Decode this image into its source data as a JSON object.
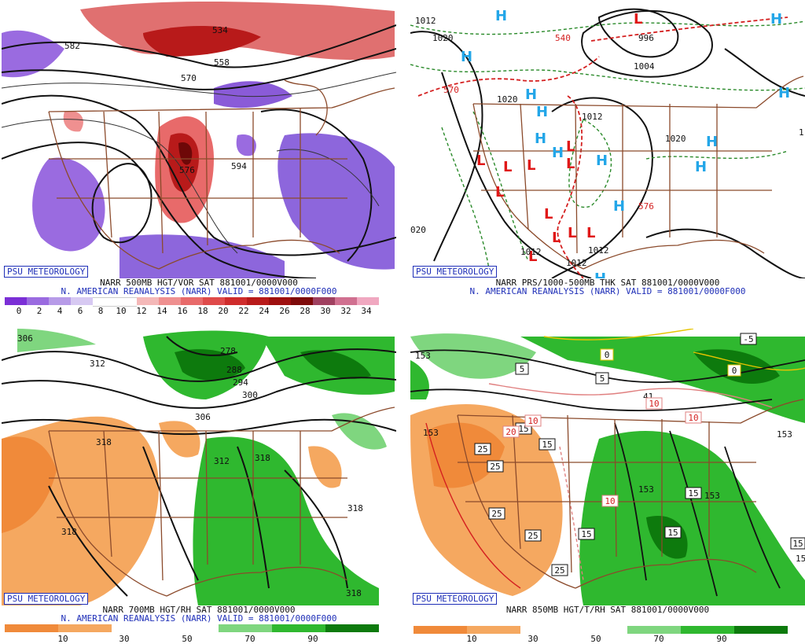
{
  "credit": "PSU METEOROLOGY",
  "panels": {
    "p1": {
      "line1": "NARR 500MB HGT/VOR SAT 881001/0000V000",
      "line2": "N. AMERICAN REANALYSIS (NARR) VALID = 881001/0000F000",
      "ticks": [
        "0",
        "2",
        "4",
        "6",
        "8",
        "10",
        "12",
        "14",
        "16",
        "18",
        "20",
        "22",
        "24",
        "26",
        "28",
        "30",
        "32",
        "34"
      ],
      "labels": [
        "534",
        "558",
        "570",
        "576",
        "594",
        "582"
      ]
    },
    "p2": {
      "line1": "NARR PRS/1000-500MB THK SAT 881001/0000V000",
      "line2": "N. AMERICAN REANALYSIS (NARR) VALID = 881001/0000F000",
      "labels": [
        "1012",
        "1020",
        "540",
        "996",
        "1004",
        "570",
        "1020",
        "1012",
        "1020",
        "1012",
        "1012",
        "1012",
        "020",
        "576",
        "1"
      ],
      "high_symbol": "H",
      "low_symbol": "L"
    },
    "p3": {
      "line1": "NARR 700MB HGT/RH SAT 881001/0000V000",
      "line2": "N. AMERICAN REANALYSIS (NARR) VALID = 881001/0000F000",
      "ticks": [
        "10",
        "30",
        "50",
        "70",
        "90"
      ],
      "labels": [
        "312",
        "278",
        "288",
        "294",
        "300",
        "306",
        "318",
        "312",
        "318",
        "318",
        "318",
        "318",
        "306"
      ]
    },
    "p4": {
      "line1": "NARR 850MB HGT/T/RH SAT 881001/0000V000",
      "ticks": [
        "10",
        "30",
        "50",
        "70",
        "90"
      ],
      "labels": [
        "153",
        "153",
        "41",
        "153",
        "153",
        "153",
        "15",
        "15"
      ],
      "boxed": [
        "0",
        "-5",
        "0",
        "5",
        "5",
        "15",
        "15",
        "25",
        "25",
        "25",
        "25",
        "25",
        "15",
        "15",
        "15",
        "15",
        "10",
        "10",
        "20",
        "10",
        "10"
      ]
    }
  },
  "colors": {
    "title_blue": "#1f2fb8",
    "border_brown": "#8b4a2b",
    "contour": "#111111",
    "vort_palette": [
      "#7b2fd6",
      "#9a6be0",
      "#b79be8",
      "#d7c9f2",
      "#ffffff",
      "#ffffff",
      "#ffffff",
      "#f4b8b8",
      "#ef9090",
      "#e86a6a",
      "#df4a4a",
      "#cf2c2c",
      "#b81a1a",
      "#9e0f0f",
      "#7e0a0a",
      "#a04060",
      "#d07090",
      "#f0a8c0"
    ],
    "rh_palette": [
      "#f08a3a",
      "#f5a860",
      "#ffffff",
      "#ffffff",
      "#7fd67f",
      "#2fb82f",
      "#0d7a0d"
    ]
  }
}
